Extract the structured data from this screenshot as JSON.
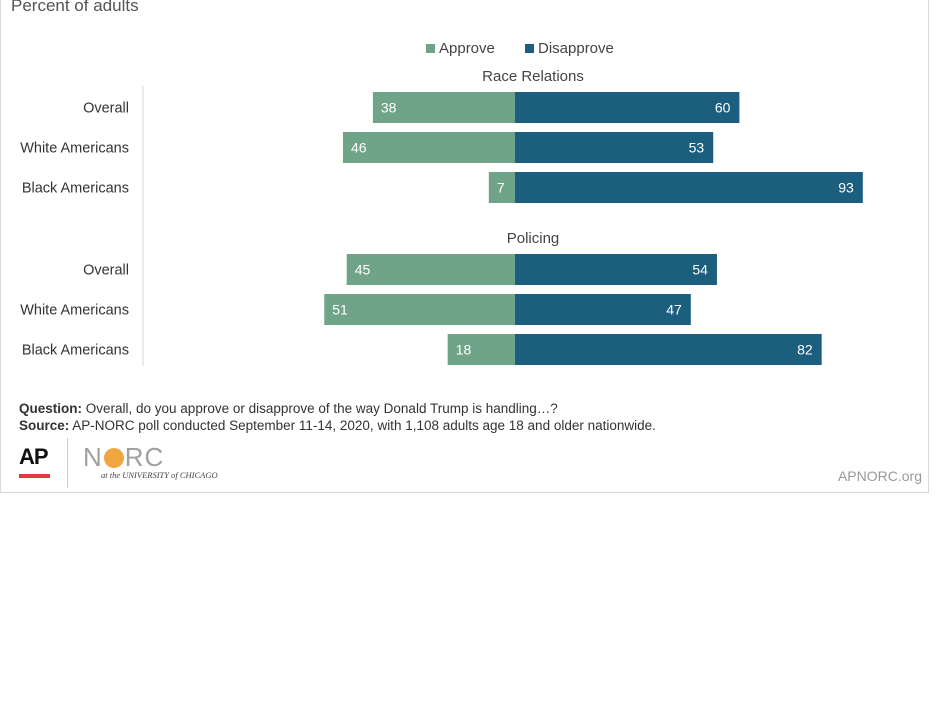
{
  "subtitle": "Percent of adults",
  "legend": {
    "approve_label": "Approve",
    "disapprove_label": "Disapprove"
  },
  "colors": {
    "approve": "#6fa488",
    "disapprove": "#1b5e7e",
    "bar_label": "#ffffff",
    "text": "#333333"
  },
  "chart_data": {
    "type": "bar",
    "orientation": "horizontal-diverging",
    "series_names": [
      "Approve",
      "Disapprove"
    ],
    "groups": [
      {
        "title": "Race Relations",
        "rows": [
          {
            "label": "Overall",
            "approve": 38,
            "disapprove": 60
          },
          {
            "label": "White Americans",
            "approve": 46,
            "disapprove": 53
          },
          {
            "label": "Black Americans",
            "approve": 7,
            "disapprove": 93
          }
        ]
      },
      {
        "title": "Policing",
        "rows": [
          {
            "label": "Overall",
            "approve": 45,
            "disapprove": 54
          },
          {
            "label": "White Americans",
            "approve": 51,
            "disapprove": 47
          },
          {
            "label": "Black Americans",
            "approve": 18,
            "disapprove": 82
          }
        ]
      }
    ]
  },
  "notes": {
    "question_label": "Question:",
    "question_text": " Overall, do you approve or disapprove of the way Donald Trump is handling…?",
    "source_label": "Source:",
    "source_text": " AP-NORC poll conducted September 11-14, 2020, with 1,108 adults age 18 and older nationwide."
  },
  "logos": {
    "ap": "AP",
    "norc_n": "N",
    "norc_rc": "RC",
    "norc_sub": "at the UNIVERSITY of CHICAGO"
  },
  "site": "APNORC.org"
}
